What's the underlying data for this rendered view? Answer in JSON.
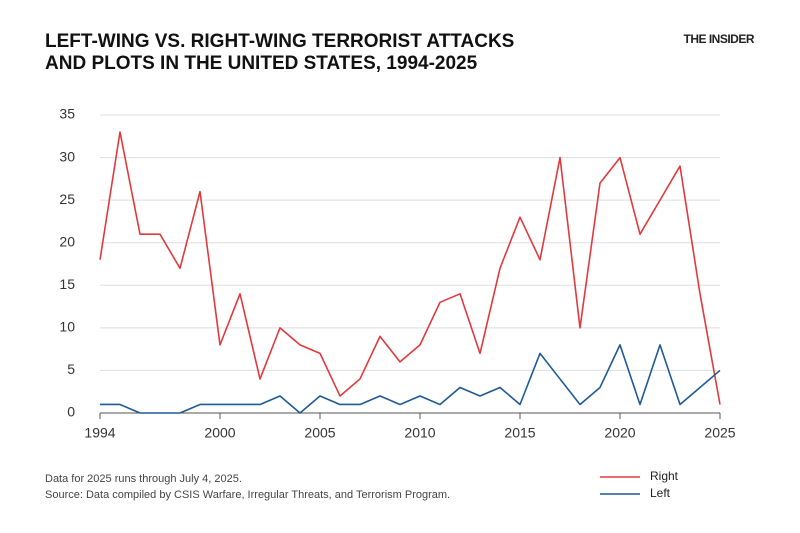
{
  "chart_data": {
    "type": "line",
    "title": [
      "LEFT-WING VS. RIGHT-WING TERRORIST ATTACKS",
      "AND PLOTS IN THE UNITED STATES, 1994-2025"
    ],
    "brand": "THE INSIDER",
    "notes": [
      "Data for 2025 runs through July 4, 2025.",
      "Source: Data compiled by CSIS Warfare, Irregular Threats, and Terrorism Program."
    ],
    "x": [
      1994,
      1995,
      1996,
      1997,
      1998,
      1999,
      2000,
      2001,
      2002,
      2003,
      2004,
      2005,
      2006,
      2007,
      2008,
      2009,
      2010,
      2011,
      2012,
      2013,
      2014,
      2015,
      2016,
      2017,
      2018,
      2019,
      2020,
      2021,
      2022,
      2023,
      2024,
      2025
    ],
    "series": [
      {
        "name": "Right",
        "color": "#e03a3e",
        "values": [
          18,
          33,
          21,
          21,
          17,
          26,
          8,
          14,
          4,
          10,
          8,
          7,
          2,
          4,
          9,
          6,
          8,
          13,
          14,
          7,
          17,
          23,
          18,
          30,
          10,
          27,
          30,
          21,
          25,
          29,
          14,
          1
        ]
      },
      {
        "name": "Left",
        "color": "#1f5a96",
        "values": [
          1,
          1,
          0,
          0,
          0,
          1,
          1,
          1,
          1,
          2,
          0,
          2,
          1,
          1,
          2,
          1,
          2,
          1,
          3,
          2,
          3,
          1,
          7,
          4,
          1,
          3,
          8,
          1,
          8,
          1,
          3,
          5
        ]
      }
    ],
    "xlim": [
      1994,
      2025
    ],
    "xticks": [
      1994,
      2000,
      2005,
      2010,
      2015,
      2020,
      2025
    ],
    "ylim": [
      0,
      35
    ],
    "yticks": [
      0,
      5,
      10,
      15,
      20,
      25,
      30,
      35
    ],
    "grid": true
  }
}
